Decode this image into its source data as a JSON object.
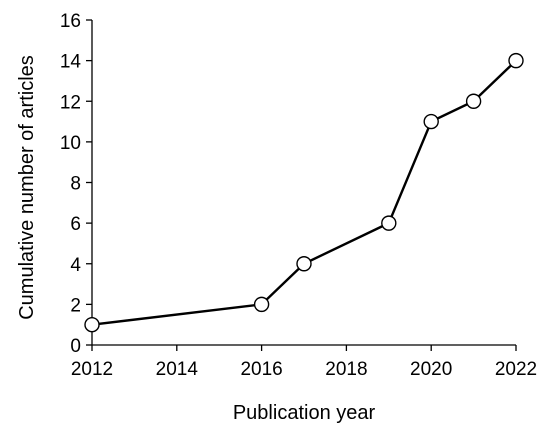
{
  "chart_data": {
    "type": "line",
    "title": "",
    "xlabel": "Publication year",
    "ylabel": "Cumulative number of articles",
    "xlim": [
      2012,
      2022
    ],
    "ylim": [
      0,
      16
    ],
    "xticks": [
      2012,
      2014,
      2016,
      2018,
      2020,
      2022
    ],
    "yticks": [
      0,
      2,
      4,
      6,
      8,
      10,
      12,
      14,
      16
    ],
    "grid": false,
    "legend": "none",
    "series": [
      {
        "x": [
          2012,
          2016,
          2017,
          2019,
          2020,
          2021,
          2022
        ],
        "y": [
          1,
          2,
          4,
          6,
          11,
          12,
          14
        ],
        "color": "#000000",
        "marker": "open-circle"
      }
    ]
  }
}
